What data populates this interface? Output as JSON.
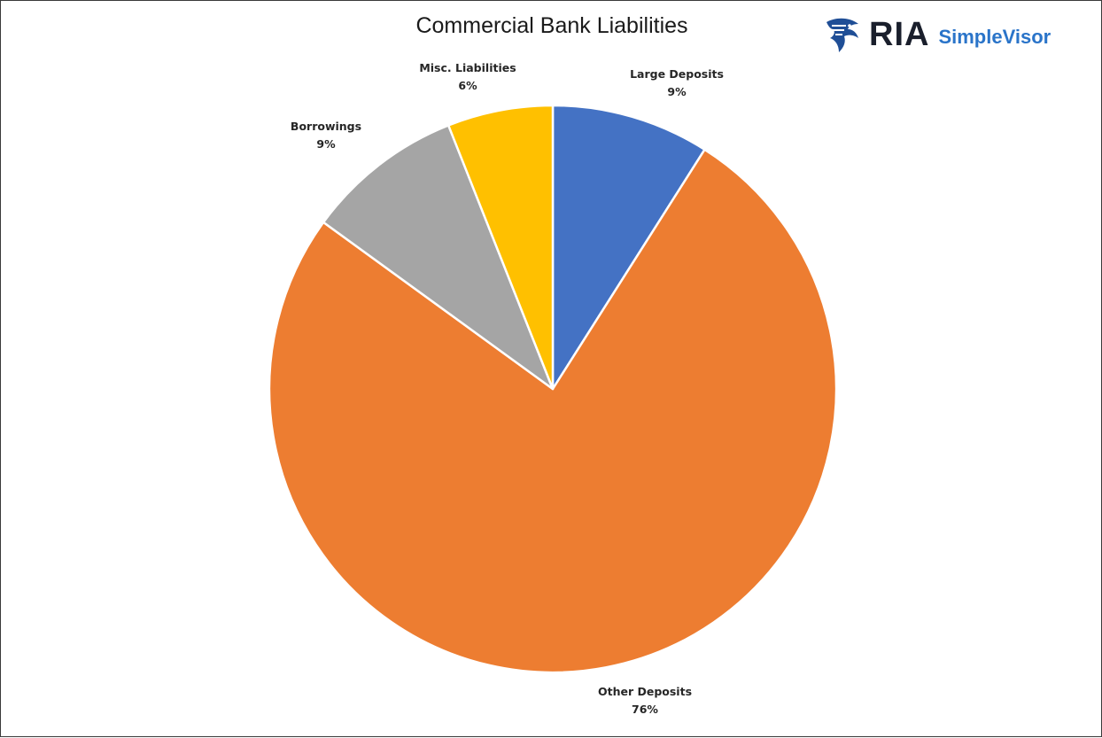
{
  "chart_data": {
    "type": "pie",
    "title": "Commercial Bank Liabilities",
    "slices": [
      {
        "label": "Large Deposits",
        "value": 9,
        "display": "9%",
        "color": "#4472c4"
      },
      {
        "label": "Other Deposits",
        "value": 76,
        "display": "76%",
        "color": "#ed7d31"
      },
      {
        "label": "Borrowings",
        "value": 9,
        "display": "9%",
        "color": "#a5a5a5"
      },
      {
        "label": "Misc. Liabilities",
        "value": 6,
        "display": "6%",
        "color": "#ffc000"
      }
    ],
    "start_angle": "12 o'clock",
    "direction": "clockwise",
    "legend": "none"
  },
  "logo": {
    "brand": "RIA",
    "product": "SimpleVisor",
    "brand_color": "#1a1f2c",
    "product_color": "#2a74c9",
    "icon": "eagle-head-icon"
  }
}
